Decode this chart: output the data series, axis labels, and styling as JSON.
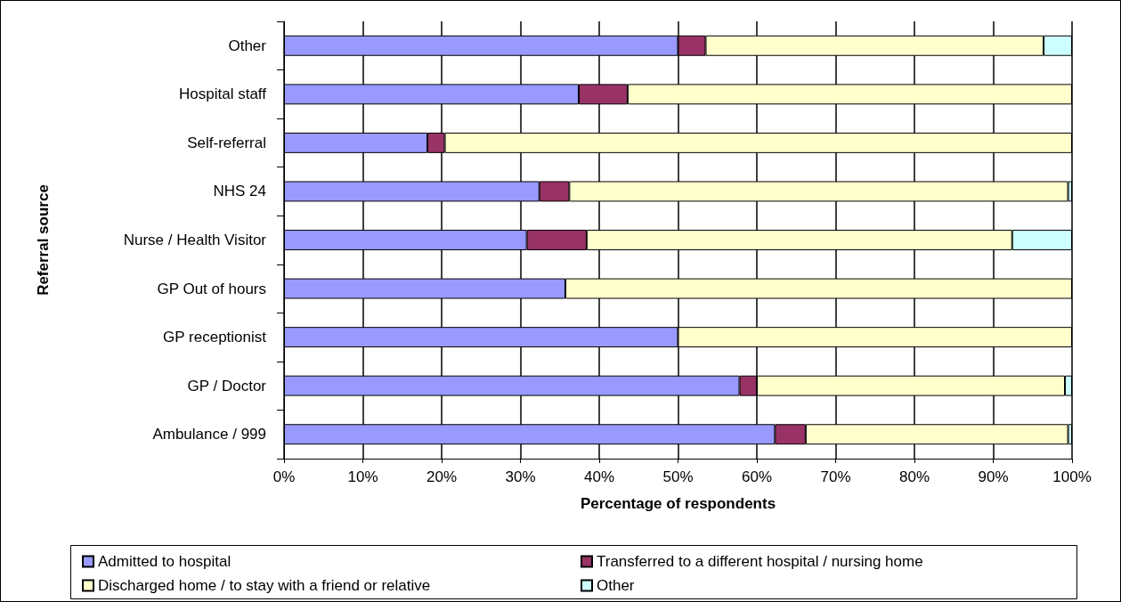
{
  "chart_data": {
    "type": "bar",
    "orientation": "horizontal",
    "stacked": true,
    "xlabel": "Percentage of respondents",
    "ylabel": "Referral source",
    "categories": [
      "Other",
      "Hospital staff",
      "Self-referral",
      "NHS 24",
      "Nurse / Health Visitor",
      "GP Out of hours",
      "GP receptionist",
      "GP / Doctor",
      "Ambulance / 999"
    ],
    "series": [
      {
        "name": "Admitted to hospital",
        "color": "#9999ff",
        "values": [
          50.0,
          37.4,
          18.2,
          32.4,
          30.8,
          35.7,
          50.0,
          57.8,
          62.3
        ]
      },
      {
        "name": "Transferred to a different hospital / nursing home",
        "color": "#993366",
        "values": [
          3.5,
          6.2,
          2.2,
          3.8,
          7.6,
          0,
          0,
          2.2,
          3.9
        ]
      },
      {
        "name": "Discharged home / to stay with a friend or relative",
        "color": "#ffffcc",
        "values": [
          42.9,
          56.4,
          79.6,
          63.3,
          54.0,
          64.3,
          50.0,
          39.1,
          33.3
        ]
      },
      {
        "name": "Other",
        "color": "#ccffff",
        "values": [
          3.6,
          0,
          null,
          0.5,
          7.6,
          0,
          0,
          0.9,
          0.5
        ]
      }
    ],
    "xlim": [
      0,
      100
    ],
    "xticks": [
      {
        "value": 0,
        "label": "0%"
      },
      {
        "value": 10,
        "label": "10%"
      },
      {
        "value": 20,
        "label": "20%"
      },
      {
        "value": 30,
        "label": "30%"
      },
      {
        "value": 40,
        "label": "40%"
      },
      {
        "value": 50,
        "label": "50%"
      },
      {
        "value": 60,
        "label": "60%"
      },
      {
        "value": 70,
        "label": "70%"
      },
      {
        "value": 80,
        "label": "80%"
      },
      {
        "value": 90,
        "label": "90%"
      },
      {
        "value": 100,
        "label": "100%"
      }
    ],
    "grid": "x",
    "legend": "bottom"
  }
}
